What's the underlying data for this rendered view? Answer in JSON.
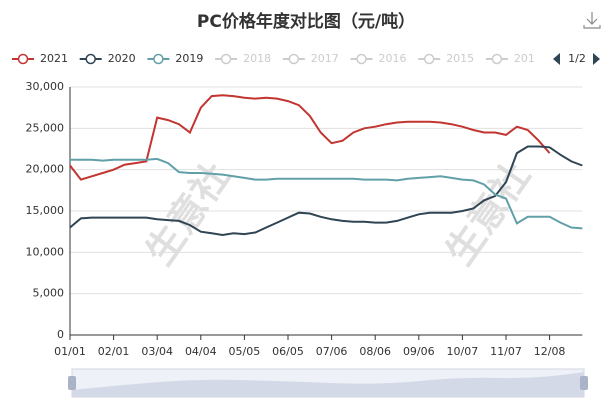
{
  "chart_data": {
    "type": "line",
    "title": "PC价格年度对比图（元/吨）",
    "categories": [
      "01/01",
      null,
      null,
      null,
      "02/01",
      null,
      null,
      null,
      "03/04",
      null,
      null,
      null,
      "04/04",
      null,
      null,
      null,
      "05/05",
      null,
      null,
      null,
      "06/05",
      null,
      null,
      null,
      "07/06",
      null,
      null,
      null,
      "08/06",
      null,
      null,
      null,
      "09/06",
      null,
      null,
      null,
      "10/07",
      null,
      null,
      null,
      "11/07",
      null,
      null,
      null,
      "12/08",
      null,
      null,
      null
    ],
    "series": [
      {
        "name": "2021",
        "color": "#c23531",
        "values": [
          20500,
          18800,
          19200,
          19600,
          20000,
          20600,
          20800,
          21000,
          26300,
          26000,
          25500,
          24500,
          27500,
          28900,
          29000,
          28900,
          28700,
          28600,
          28700,
          28600,
          28300,
          27800,
          26500,
          24500,
          23200,
          23500,
          24500,
          25000,
          25200,
          25500,
          25700,
          25800,
          25800,
          25800,
          25700,
          25500,
          25200,
          24800,
          24500,
          24500,
          24200,
          25200,
          24800,
          23500,
          22000,
          null,
          null,
          null
        ]
      },
      {
        "name": "2020",
        "color": "#2f4554",
        "values": [
          13000,
          14100,
          14200,
          14200,
          14200,
          14200,
          14200,
          14200,
          14000,
          13900,
          13800,
          13300,
          12500,
          12300,
          12100,
          12300,
          12200,
          12400,
          13000,
          13600,
          14200,
          14800,
          14700,
          14300,
          14000,
          13800,
          13700,
          13700,
          13600,
          13600,
          13800,
          14200,
          14600,
          14800,
          14800,
          14800,
          15000,
          15300,
          16300,
          16800,
          18500,
          22000,
          22800,
          22800,
          22700,
          21800,
          21000,
          20500
        ]
      },
      {
        "name": "2019",
        "color": "#61a0a8",
        "values": [
          21200,
          21200,
          21200,
          21100,
          21200,
          21200,
          21200,
          21200,
          21300,
          20800,
          19700,
          19600,
          19600,
          19500,
          19400,
          19200,
          19000,
          18800,
          18800,
          18900,
          18900,
          18900,
          18900,
          18900,
          18900,
          18900,
          18900,
          18800,
          18800,
          18800,
          18700,
          18900,
          19000,
          19100,
          19200,
          19000,
          18800,
          18700,
          18200,
          17000,
          16500,
          13500,
          14300,
          14300,
          14300,
          13600,
          13000,
          12900
        ]
      }
    ],
    "legend_inactive": [
      "2018",
      "2017",
      "2016",
      "2015",
      "201"
    ],
    "legend_inactive_color": "#cccccc",
    "legend_page": "1/2",
    "watermark": "生意社",
    "ylim": [
      0,
      30000
    ],
    "yticks": [
      0,
      {
        "value": 5000,
        "label": "5,000"
      },
      {
        "value": 10000,
        "label": "10,000"
      },
      {
        "value": 15000,
        "label": "15,000"
      },
      {
        "value": 20000,
        "label": "20,000"
      },
      {
        "value": 25000,
        "label": "25,000"
      },
      {
        "value": 30000,
        "label": "30,000"
      }
    ],
    "grid": true
  }
}
